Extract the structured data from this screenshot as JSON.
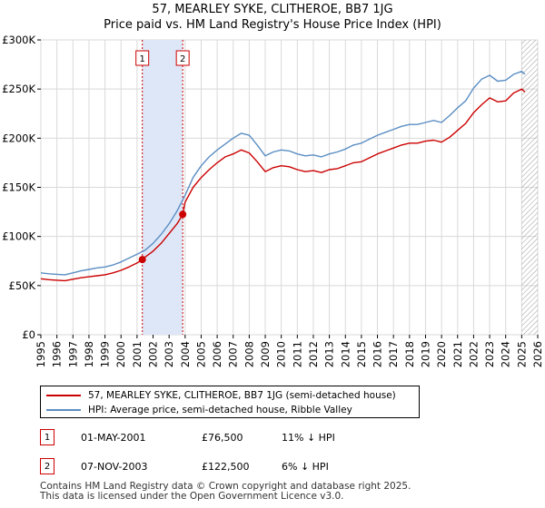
{
  "header": {
    "title": "57, MEARLEY SYKE, CLITHEROE, BB7 1JG",
    "subtitle": "Price paid vs. HM Land Registry's House Price Index (HPI)"
  },
  "colors": {
    "property": "#cc0000",
    "hpi": "#5b8ec4",
    "highlight": "#dde7f7",
    "grid": "#d9d9d9"
  },
  "chart_data": {
    "type": "line",
    "title": "57, MEARLEY SYKE, CLITHEROE, BB7 1JG",
    "subtitle": "Price paid vs. HM Land Registry's House Price Index (HPI)",
    "xlabel": "",
    "ylabel": "",
    "xlim": [
      1995,
      2026
    ],
    "ylim": [
      0,
      300000
    ],
    "yticks": [
      0,
      50000,
      100000,
      150000,
      200000,
      250000,
      300000
    ],
    "ytick_labels": [
      "£0",
      "£50K",
      "£100K",
      "£150K",
      "£200K",
      "£250K",
      "£300K"
    ],
    "xticks": [
      1995,
      1996,
      1997,
      1998,
      1999,
      2000,
      2001,
      2002,
      2003,
      2004,
      2005,
      2006,
      2007,
      2008,
      2009,
      2010,
      2011,
      2012,
      2013,
      2014,
      2015,
      2016,
      2017,
      2018,
      2019,
      2020,
      2021,
      2022,
      2023,
      2024,
      2025,
      2026
    ],
    "grid": true,
    "highlight_range": [
      2001.33,
      2003.85
    ],
    "future_hatch_from": 2025.0,
    "series": [
      {
        "name": "57, MEARLEY SYKE, CLITHEROE, BB7 1JG (semi-detached house)",
        "color": "#cc0000",
        "x": [
          1995.0,
          1995.5,
          1996.0,
          1996.5,
          1997.0,
          1997.5,
          1998.0,
          1998.5,
          1999.0,
          1999.5,
          2000.0,
          2000.5,
          2001.0,
          2001.33,
          2001.5,
          2002.0,
          2002.5,
          2003.0,
          2003.5,
          2003.85,
          2004.0,
          2004.5,
          2005.0,
          2005.5,
          2006.0,
          2006.5,
          2007.0,
          2007.5,
          2008.0,
          2008.5,
          2009.0,
          2009.5,
          2010.0,
          2010.5,
          2011.0,
          2011.5,
          2012.0,
          2012.5,
          2013.0,
          2013.5,
          2014.0,
          2014.5,
          2015.0,
          2015.5,
          2016.0,
          2016.5,
          2017.0,
          2017.5,
          2018.0,
          2018.5,
          2019.0,
          2019.5,
          2020.0,
          2020.5,
          2021.0,
          2021.5,
          2022.0,
          2022.5,
          2023.0,
          2023.5,
          2024.0,
          2024.5,
          2025.0,
          2025.2
        ],
        "values": [
          57000,
          56000,
          55500,
          55000,
          56500,
          58000,
          59000,
          60000,
          61000,
          63000,
          65500,
          69000,
          73000,
          76500,
          79000,
          85000,
          93000,
          103000,
          113000,
          122500,
          135000,
          150000,
          160000,
          168000,
          175000,
          181000,
          184000,
          188000,
          185000,
          176000,
          166000,
          170000,
          172000,
          171000,
          168000,
          166000,
          167000,
          165000,
          168000,
          169000,
          172000,
          175000,
          176000,
          180000,
          184000,
          187000,
          190000,
          193000,
          195000,
          195000,
          197000,
          198000,
          196000,
          201000,
          208000,
          215000,
          226000,
          234000,
          241000,
          237000,
          238000,
          246000,
          250000,
          247000
        ]
      },
      {
        "name": "HPI: Average price, semi-detached house, Ribble Valley",
        "color": "#5b8ec4",
        "x": [
          1995.0,
          1995.5,
          1996.0,
          1996.5,
          1997.0,
          1997.5,
          1998.0,
          1998.5,
          1999.0,
          1999.5,
          2000.0,
          2000.5,
          2001.0,
          2001.5,
          2002.0,
          2002.5,
          2003.0,
          2003.5,
          2004.0,
          2004.5,
          2005.0,
          2005.5,
          2006.0,
          2006.5,
          2007.0,
          2007.5,
          2008.0,
          2008.5,
          2009.0,
          2009.5,
          2010.0,
          2010.5,
          2011.0,
          2011.5,
          2012.0,
          2012.5,
          2013.0,
          2013.5,
          2014.0,
          2014.5,
          2015.0,
          2015.5,
          2016.0,
          2016.5,
          2017.0,
          2017.5,
          2018.0,
          2018.5,
          2019.0,
          2019.5,
          2020.0,
          2020.5,
          2021.0,
          2021.5,
          2022.0,
          2022.5,
          2023.0,
          2023.5,
          2024.0,
          2024.5,
          2025.0,
          2025.2
        ],
        "values": [
          63000,
          62000,
          61500,
          61000,
          63000,
          65000,
          66500,
          68000,
          69000,
          71000,
          74000,
          78000,
          82000,
          86000,
          93000,
          102000,
          113000,
          126000,
          142000,
          160000,
          172000,
          181000,
          188000,
          194000,
          200000,
          205000,
          203000,
          193000,
          182000,
          186000,
          188000,
          187000,
          184000,
          182000,
          183000,
          181000,
          184000,
          186000,
          189000,
          193000,
          195000,
          199000,
          203000,
          206000,
          209000,
          212000,
          214000,
          214000,
          216000,
          218000,
          216000,
          223000,
          231000,
          238000,
          251000,
          260000,
          264000,
          258000,
          259000,
          265000,
          268000,
          265000
        ]
      }
    ],
    "sales": [
      {
        "marker": "1",
        "x": 2001.33,
        "value": 76500
      },
      {
        "marker": "2",
        "x": 2003.85,
        "value": 122500
      }
    ]
  },
  "legend": {
    "items": [
      {
        "label": "57, MEARLEY SYKE, CLITHEROE, BB7 1JG (semi-detached house)",
        "color": "#cc0000"
      },
      {
        "label": "HPI: Average price, semi-detached house, Ribble Valley",
        "color": "#5b8ec4"
      }
    ]
  },
  "sales_table": [
    {
      "marker": "1",
      "date": "01-MAY-2001",
      "price": "£76,500",
      "hpi": "11% ↓ HPI"
    },
    {
      "marker": "2",
      "date": "07-NOV-2003",
      "price": "£122,500",
      "hpi": "6% ↓ HPI"
    }
  ],
  "footer": {
    "line1": "Contains HM Land Registry data © Crown copyright and database right 2025.",
    "line2": "This data is licensed under the Open Government Licence v3.0."
  }
}
